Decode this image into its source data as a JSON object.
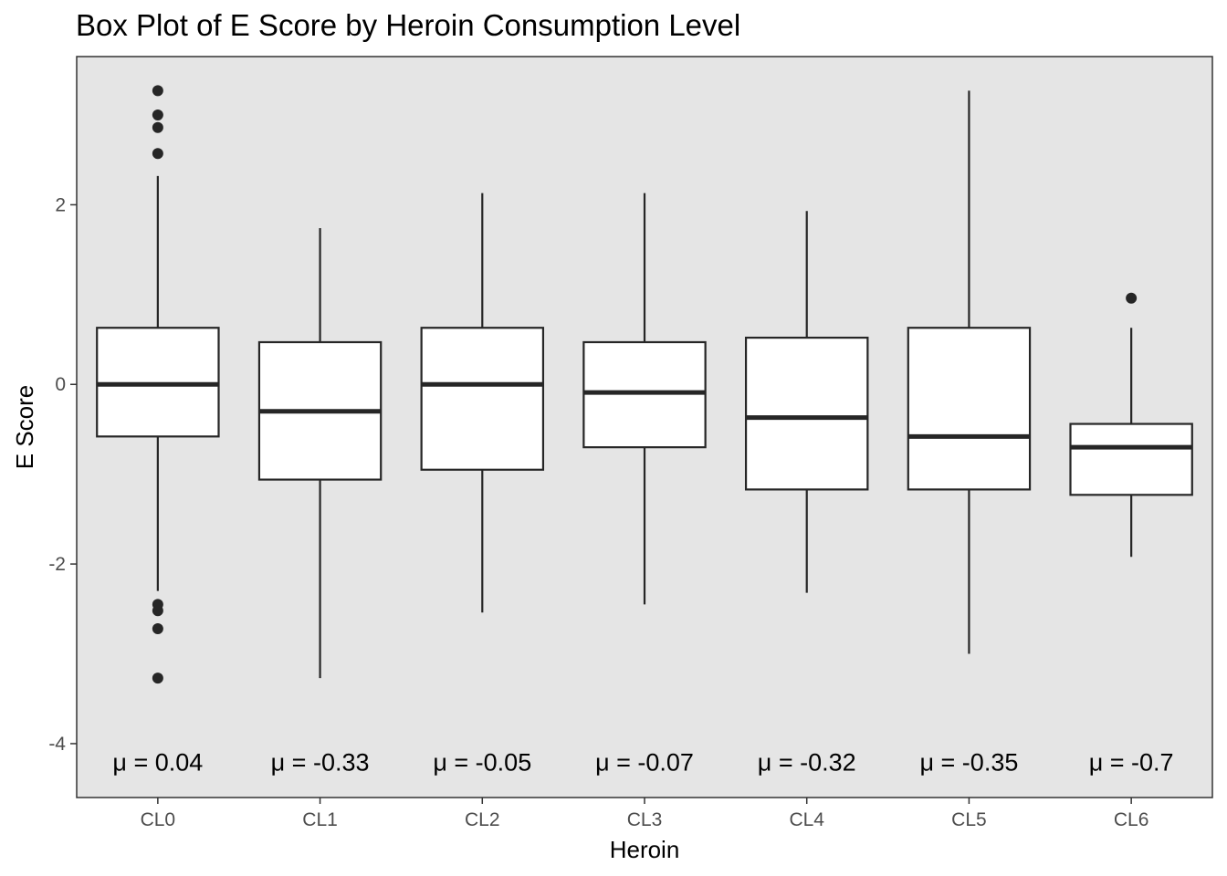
{
  "chart_data": {
    "type": "box",
    "title": "Box Plot of E Score by Heroin Consumption Level",
    "xlabel": "Heroin",
    "ylabel": "E Score",
    "ylim": [
      -4.6,
      3.65
    ],
    "yticks": [
      -4,
      -2,
      0,
      2
    ],
    "grid": false,
    "background": "#e5e5e5",
    "categories": [
      "CL0",
      "CL1",
      "CL2",
      "CL3",
      "CL4",
      "CL5",
      "CL6"
    ],
    "boxes": [
      {
        "category": "CL0",
        "whisker_low": -2.3,
        "q1": -0.58,
        "median": 0.0,
        "q3": 0.63,
        "whisker_high": 2.32,
        "outliers": [
          3.27,
          3.0,
          2.86,
          2.57,
          -2.45,
          -2.52,
          -2.72,
          -3.27
        ]
      },
      {
        "category": "CL1",
        "whisker_low": -3.27,
        "q1": -1.06,
        "median": -0.3,
        "q3": 0.47,
        "whisker_high": 1.74,
        "outliers": []
      },
      {
        "category": "CL2",
        "whisker_low": -2.54,
        "q1": -0.95,
        "median": 0.0,
        "q3": 0.63,
        "whisker_high": 2.13,
        "outliers": []
      },
      {
        "category": "CL3",
        "whisker_low": -2.45,
        "q1": -0.7,
        "median": -0.09,
        "q3": 0.47,
        "whisker_high": 2.13,
        "outliers": []
      },
      {
        "category": "CL4",
        "whisker_low": -2.32,
        "q1": -1.17,
        "median": -0.37,
        "q3": 0.52,
        "whisker_high": 1.93,
        "outliers": []
      },
      {
        "category": "CL5",
        "whisker_low": -3.0,
        "q1": -1.17,
        "median": -0.58,
        "q3": 0.63,
        "whisker_high": 3.27,
        "outliers": []
      },
      {
        "category": "CL6",
        "whisker_low": -1.92,
        "q1": -1.23,
        "median": -0.7,
        "q3": -0.44,
        "whisker_high": 0.63,
        "outliers": [
          0.96
        ]
      }
    ],
    "annotations": [
      "μ = 0.04",
      "μ = -0.33",
      "μ = -0.05",
      "μ = -0.07",
      "μ = -0.32",
      "μ = -0.35",
      "μ = -0.7"
    ],
    "annotation_y": -4.2
  }
}
